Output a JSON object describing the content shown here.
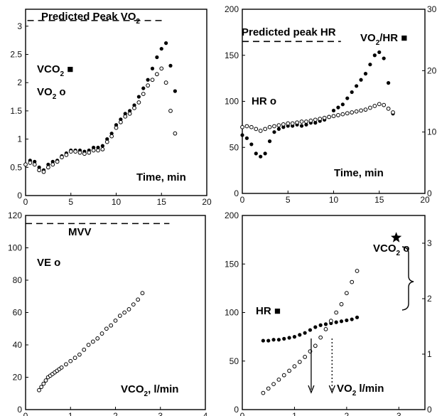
{
  "chart_data": [
    {
      "type": "scatter",
      "x_ticks": [
        "0",
        "5",
        "10",
        "15",
        "20"
      ],
      "y_ticks": [
        "0",
        "0.5",
        "1",
        "1.5",
        "2",
        "2.5",
        "3"
      ],
      "xlim": [
        0,
        20
      ],
      "ylim": [
        0,
        3.3
      ],
      "reference_line": {
        "label": "Predicted Peak VO",
        "label_sub": "2",
        "y": 3.1,
        "x_range": [
          0.2,
          15.4
        ]
      },
      "annotations": [
        {
          "text": "VCO",
          "sub": "2",
          "suffix": " ■"
        },
        {
          "text": "VO",
          "sub": "2",
          "suffix": " o"
        },
        {
          "text": "Time, min",
          "sub": "",
          "suffix": ""
        }
      ],
      "series": [
        {
          "marker": "filled",
          "x": [
            0,
            0.5,
            1,
            1.5,
            2,
            2.5,
            3,
            3.5,
            4,
            4.5,
            5,
            5.5,
            6,
            6.5,
            7,
            7.5,
            8,
            8.5,
            9,
            9.5,
            10,
            10.5,
            11,
            11.5,
            12,
            12.5,
            13,
            13.5,
            14,
            14.5,
            15,
            15.5,
            16,
            16.5
          ],
          "y": [
            0.55,
            0.62,
            0.6,
            0.5,
            0.45,
            0.55,
            0.6,
            0.62,
            0.7,
            0.75,
            0.8,
            0.8,
            0.8,
            0.78,
            0.8,
            0.85,
            0.85,
            0.88,
            1.0,
            1.1,
            1.25,
            1.35,
            1.45,
            1.5,
            1.6,
            1.75,
            1.9,
            2.05,
            2.25,
            2.45,
            2.6,
            2.7,
            2.3,
            1.85
          ]
        },
        {
          "marker": "open",
          "x": [
            0,
            0.5,
            1,
            1.5,
            2,
            2.5,
            3,
            3.5,
            4,
            4.5,
            5,
            5.5,
            6,
            6.5,
            7,
            7.5,
            8,
            8.5,
            9,
            9.5,
            10,
            10.5,
            11,
            11.5,
            12,
            12.5,
            13,
            13.5,
            14,
            14.5,
            15,
            15.5,
            16,
            16.5
          ],
          "y": [
            0.55,
            0.58,
            0.55,
            0.45,
            0.42,
            0.5,
            0.55,
            0.6,
            0.68,
            0.72,
            0.78,
            0.78,
            0.76,
            0.74,
            0.76,
            0.8,
            0.8,
            0.82,
            0.95,
            1.05,
            1.2,
            1.3,
            1.4,
            1.45,
            1.55,
            1.65,
            1.8,
            1.95,
            2.05,
            2.15,
            2.25,
            2.0,
            1.5,
            1.1
          ]
        }
      ]
    },
    {
      "type": "scatter",
      "x_ticks": [
        "0",
        "5",
        "10",
        "15",
        "20"
      ],
      "y_ticks": [
        "0",
        "50",
        "100",
        "150",
        "200"
      ],
      "y2_ticks": [
        "0",
        "10",
        "20",
        "30"
      ],
      "xlim": [
        0,
        20
      ],
      "ylim": [
        0,
        200
      ],
      "y2lim": [
        0,
        30
      ],
      "reference_line": {
        "label": "Predicted peak HR",
        "label_sub": "",
        "y": 165,
        "x_range": [
          0,
          10.8
        ]
      },
      "annotations": [
        {
          "text": "VO",
          "sub": "2",
          "suffix": "/HR ■"
        },
        {
          "text": "HR o",
          "sub": "",
          "suffix": ""
        },
        {
          "text": "Time, min",
          "sub": "",
          "suffix": ""
        }
      ],
      "series": [
        {
          "marker": "filled",
          "axis": "y2",
          "x": [
            0,
            0.5,
            1,
            1.5,
            2,
            2.5,
            3,
            3.5,
            4,
            4.5,
            5,
            5.5,
            6,
            6.5,
            7,
            7.5,
            8,
            8.5,
            9,
            9.5,
            10,
            10.5,
            11,
            11.5,
            12,
            12.5,
            13,
            13.5,
            14,
            14.5,
            15,
            15.5,
            16,
            16.5
          ],
          "y": [
            9.5,
            9.0,
            8.0,
            6.5,
            6.0,
            6.5,
            8.5,
            10.0,
            10.5,
            10.8,
            11.0,
            11.0,
            11.2,
            11.0,
            11.2,
            11.5,
            11.5,
            11.8,
            12.0,
            12.5,
            13.5,
            14.0,
            14.5,
            15.5,
            16.5,
            17.5,
            18.5,
            19.5,
            21.0,
            22.5,
            23.0,
            22.0,
            18.0,
            13.0
          ]
        },
        {
          "marker": "open",
          "x": [
            0,
            0.5,
            1,
            1.5,
            2,
            2.5,
            3,
            3.5,
            4,
            4.5,
            5,
            5.5,
            6,
            6.5,
            7,
            7.5,
            8,
            8.5,
            9,
            9.5,
            10,
            10.5,
            11,
            11.5,
            12,
            12.5,
            13,
            13.5,
            14,
            14.5,
            15,
            15.5,
            16,
            16.5
          ],
          "y": [
            72,
            73,
            72,
            70,
            68,
            70,
            72,
            73,
            74,
            75,
            76,
            76,
            77,
            78,
            78,
            79,
            80,
            81,
            82,
            83,
            84,
            85,
            86,
            87,
            88,
            89,
            90,
            91,
            93,
            95,
            97,
            96,
            92,
            88
          ]
        }
      ]
    },
    {
      "type": "scatter",
      "x_ticks": [
        "0",
        "1",
        "2",
        "3",
        "4"
      ],
      "y_ticks": [
        "0",
        "20",
        "40",
        "60",
        "80",
        "100",
        "120"
      ],
      "xlim": [
        0,
        4
      ],
      "ylim": [
        0,
        120
      ],
      "reference_line": {
        "label": "MVV",
        "label_sub": "",
        "y": 115,
        "x_range": [
          0,
          3.2
        ]
      },
      "annotations": [
        {
          "text": "VE o",
          "sub": "",
          "suffix": ""
        },
        {
          "text": "VCO",
          "sub": "2",
          "suffix": ", l/min"
        }
      ],
      "series": [
        {
          "marker": "open",
          "x": [
            0.3,
            0.35,
            0.4,
            0.45,
            0.5,
            0.55,
            0.6,
            0.65,
            0.7,
            0.75,
            0.8,
            0.9,
            1.0,
            1.1,
            1.2,
            1.3,
            1.4,
            1.5,
            1.6,
            1.7,
            1.8,
            1.9,
            2.0,
            2.1,
            2.2,
            2.3,
            2.4,
            2.5,
            2.6
          ],
          "y": [
            12,
            14,
            16,
            18,
            20,
            21,
            22,
            23,
            24,
            25,
            26,
            28,
            30,
            32,
            34,
            37,
            40,
            42,
            44,
            47,
            50,
            52,
            55,
            58,
            60,
            62,
            65,
            68,
            72
          ]
        }
      ]
    },
    {
      "type": "scatter",
      "x_ticks": [
        "0",
        "1",
        "2",
        "3"
      ],
      "y_ticks": [
        "0",
        "50",
        "100",
        "150",
        "200"
      ],
      "y2_ticks": [
        "0",
        "1",
        "2",
        "3"
      ],
      "xlim": [
        0,
        3.5
      ],
      "ylim": [
        0,
        200
      ],
      "y2lim": [
        0,
        3.5
      ],
      "annotations": [
        {
          "text": "VCO",
          "sub": "2",
          "suffix": " o"
        },
        {
          "text": "HR ■",
          "sub": "",
          "suffix": ""
        },
        {
          "text": "VO",
          "sub": "2",
          "suffix": " l/min"
        }
      ],
      "arrows": [
        {
          "x": 1.32,
          "style": "solid"
        },
        {
          "x": 1.72,
          "style": "dotted"
        }
      ],
      "star": {
        "x": 2.95,
        "y2": 3.1
      },
      "series": [
        {
          "marker": "filled",
          "x": [
            0.4,
            0.5,
            0.6,
            0.7,
            0.8,
            0.9,
            1.0,
            1.1,
            1.2,
            1.3,
            1.4,
            1.5,
            1.6,
            1.7,
            1.8,
            1.9,
            2.0,
            2.1,
            2.2
          ],
          "y": [
            71,
            71,
            72,
            72,
            73,
            74,
            75,
            77,
            79,
            82,
            85,
            87,
            88,
            89,
            90,
            91,
            92,
            93,
            95
          ]
        },
        {
          "marker": "open",
          "axis": "y2",
          "x": [
            0.4,
            0.5,
            0.6,
            0.7,
            0.8,
            0.9,
            1.0,
            1.1,
            1.2,
            1.3,
            1.4,
            1.5,
            1.6,
            1.7,
            1.8,
            1.9,
            2.0,
            2.1,
            2.2
          ],
          "y": [
            0.3,
            0.38,
            0.46,
            0.54,
            0.62,
            0.7,
            0.78,
            0.86,
            0.95,
            1.05,
            1.15,
            1.3,
            1.45,
            1.6,
            1.75,
            1.9,
            2.1,
            2.3,
            2.5
          ]
        }
      ]
    }
  ]
}
